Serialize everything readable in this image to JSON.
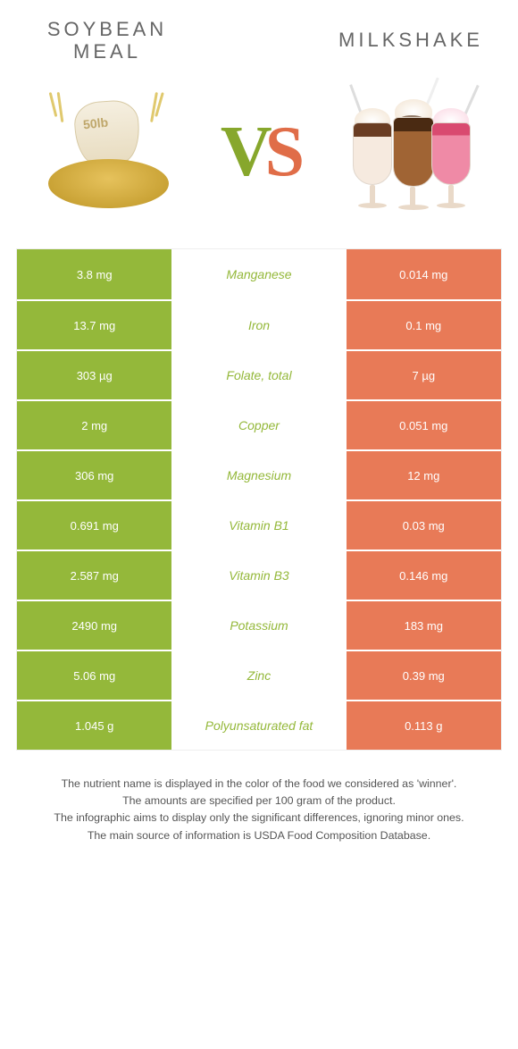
{
  "header": {
    "left_title": "Soybean meal",
    "right_title": "Milkshake",
    "left_image_label": "50lb"
  },
  "vs": {
    "text_v": "V",
    "text_s": "S",
    "color_v": "#87a72c",
    "color_s": "#e06d48"
  },
  "colors": {
    "left_bg": "#94b83a",
    "right_bg": "#e87a57",
    "mid_text_winner_left": "#94b83a",
    "mid_text_winner_right": "#e87a57",
    "cell_text": "#ffffff",
    "border": "#ffffff",
    "page_bg": "#ffffff"
  },
  "table": {
    "rows": [
      {
        "nutrient": "Manganese",
        "left": "3.8 mg",
        "right": "0.014 mg",
        "winner": "left"
      },
      {
        "nutrient": "Iron",
        "left": "13.7 mg",
        "right": "0.1 mg",
        "winner": "left"
      },
      {
        "nutrient": "Folate, total",
        "left": "303 µg",
        "right": "7 µg",
        "winner": "left"
      },
      {
        "nutrient": "Copper",
        "left": "2 mg",
        "right": "0.051 mg",
        "winner": "left"
      },
      {
        "nutrient": "Magnesium",
        "left": "306 mg",
        "right": "12 mg",
        "winner": "left"
      },
      {
        "nutrient": "Vitamin B1",
        "left": "0.691 mg",
        "right": "0.03 mg",
        "winner": "left"
      },
      {
        "nutrient": "Vitamin B3",
        "left": "2.587 mg",
        "right": "0.146 mg",
        "winner": "left"
      },
      {
        "nutrient": "Potassium",
        "left": "2490 mg",
        "right": "183 mg",
        "winner": "left"
      },
      {
        "nutrient": "Zinc",
        "left": "5.06 mg",
        "right": "0.39 mg",
        "winner": "left"
      },
      {
        "nutrient": "Polyunsaturated fat",
        "left": "1.045 g",
        "right": "0.113 g",
        "winner": "left"
      }
    ]
  },
  "typography": {
    "title_fontsize": 22,
    "cell_fontsize": 13,
    "mid_fontsize": 14,
    "footer_fontsize": 12.4,
    "vs_fontsize": 80
  },
  "footer": {
    "line1": "The nutrient name is displayed in the color of the food we considered as 'winner'.",
    "line2": "The amounts are specified per 100 gram of the product.",
    "line3": "The infographic aims to display only the significant differences, ignoring minor ones.",
    "line4": "The main source of information is USDA Food Composition Database."
  }
}
